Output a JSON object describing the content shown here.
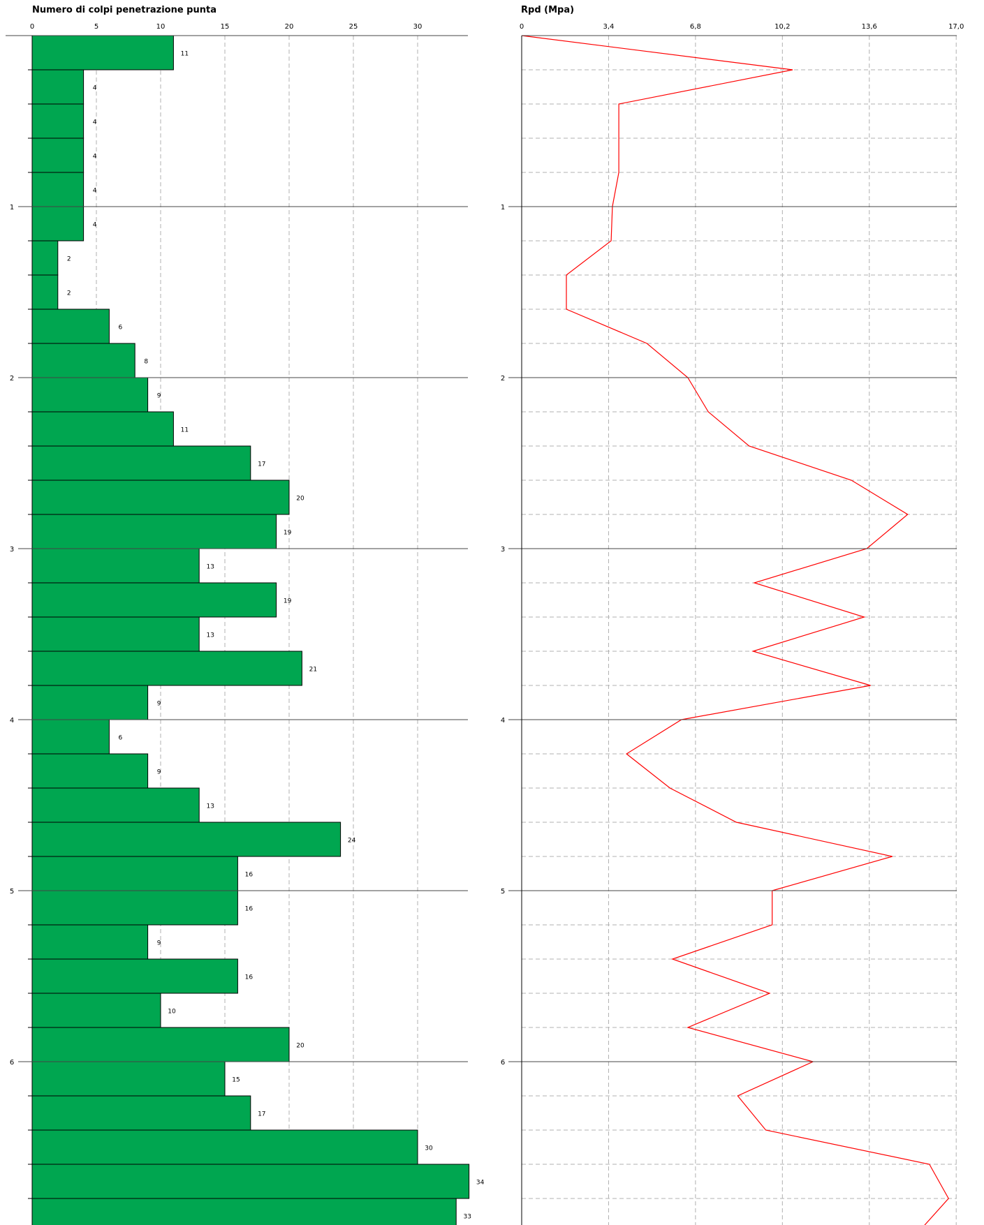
{
  "chart_data": [
    {
      "type": "bar",
      "orientation": "horizontal",
      "title": "Numero di colpi penetrazione punta",
      "xlim": [
        0,
        34
      ],
      "x_ticks": [
        "0",
        "5",
        "10",
        "15",
        "20",
        "25",
        "30"
      ],
      "x_tick_values": [
        0,
        5,
        10,
        15,
        20,
        25,
        30
      ],
      "depth_tick_labels": [
        "1",
        "2",
        "3",
        "4",
        "5",
        "6"
      ],
      "depth_tick_values": [
        1,
        2,
        3,
        4,
        5,
        6
      ],
      "depth_step": 0.2,
      "values": [
        11,
        4,
        4,
        4,
        4,
        4,
        2,
        2,
        6,
        8,
        9,
        11,
        17,
        20,
        19,
        13,
        19,
        13,
        21,
        9,
        6,
        9,
        13,
        24,
        16,
        16,
        9,
        16,
        10,
        20,
        15,
        17,
        30,
        34,
        33
      ],
      "bar_color": "#00a650",
      "grid": true
    },
    {
      "type": "line",
      "title": "Rpd (Mpa)",
      "xlim": [
        0,
        17.0
      ],
      "x_ticks": [
        "0",
        "3,4",
        "6,8",
        "10,2",
        "13,6",
        "17,0"
      ],
      "x_tick_values": [
        0,
        3.4,
        6.8,
        10.2,
        13.6,
        17.0
      ],
      "depth_tick_labels": [
        "1",
        "2",
        "3",
        "4",
        "5",
        "6"
      ],
      "depth_tick_values": [
        1,
        2,
        3,
        4,
        5,
        6
      ],
      "depth": [
        0,
        0.2,
        0.4,
        0.6,
        0.8,
        1.0,
        1.2,
        1.4,
        1.6,
        1.8,
        2.0,
        2.2,
        2.4,
        2.6,
        2.8,
        3.0,
        3.2,
        3.4,
        3.6,
        3.8,
        4.0,
        4.2,
        4.4,
        4.6,
        4.8,
        5.0,
        5.2,
        5.4,
        5.6,
        5.8,
        6.0,
        6.2,
        6.4,
        6.6,
        6.8,
        7.0
      ],
      "values": [
        0,
        10.6,
        3.8,
        3.8,
        3.8,
        3.55,
        3.5,
        1.75,
        1.75,
        4.9,
        6.5,
        7.3,
        8.9,
        12.9,
        15.1,
        13.5,
        9.1,
        13.4,
        9.05,
        13.65,
        6.25,
        4.1,
        5.8,
        8.4,
        14.5,
        9.8,
        9.8,
        5.9,
        9.7,
        6.5,
        11.4,
        8.45,
        9.55,
        15.95,
        16.7,
        15.5
      ],
      "line_color": "#ff0000",
      "grid": true
    }
  ]
}
